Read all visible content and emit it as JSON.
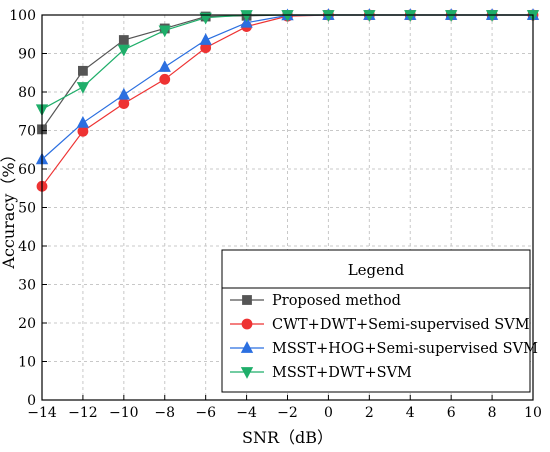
{
  "chart_data": {
    "type": "line",
    "xlabel": "SNR（dB）",
    "ylabel": "Accuracy（%）",
    "xlim": [
      -14,
      10
    ],
    "ylim": [
      0,
      100
    ],
    "xticks": [
      -14,
      -12,
      -10,
      -8,
      -6,
      -4,
      -2,
      0,
      2,
      4,
      6,
      8,
      10
    ],
    "yticks": [
      0,
      10,
      20,
      30,
      40,
      50,
      60,
      70,
      80,
      90,
      100
    ],
    "xtick_labels": [
      "−14",
      "−12",
      "−10",
      "−8",
      "−6",
      "−4",
      "−2",
      "0",
      "2",
      "4",
      "6",
      "8",
      "10"
    ],
    "grid": true,
    "legend": {
      "title": "Legend",
      "placement": "lower-right"
    },
    "x": [
      -14,
      -12,
      -10,
      -8,
      -6,
      -4,
      -2,
      0,
      2,
      4,
      6,
      8,
      10
    ],
    "series": [
      {
        "name": "Proposed method",
        "color": "#555555",
        "marker": "square",
        "values": [
          70.3,
          85.5,
          93.5,
          96.5,
          99.6,
          99.8,
          100,
          100,
          100,
          100,
          100,
          100,
          100
        ]
      },
      {
        "name": "CWT+DWT+Semi-supervised SVM",
        "color": "#ee3333",
        "marker": "circle",
        "values": [
          55.5,
          69.8,
          77.0,
          83.3,
          91.5,
          97.0,
          99.7,
          100,
          100,
          100,
          100,
          100,
          100
        ]
      },
      {
        "name": "MSST+HOG+Semi-supervised SVM",
        "color": "#2b6fe0",
        "marker": "triangle-up",
        "values": [
          62.5,
          72.0,
          79.3,
          86.5,
          93.5,
          98.0,
          99.9,
          100,
          100,
          100,
          100,
          100,
          100
        ]
      },
      {
        "name": "MSST+DWT+SVM",
        "color": "#1fae6a",
        "marker": "triangle-down",
        "values": [
          75.5,
          81.3,
          91.0,
          96.0,
          99.3,
          100,
          100,
          100,
          100,
          100,
          100,
          100,
          100
        ]
      }
    ]
  }
}
